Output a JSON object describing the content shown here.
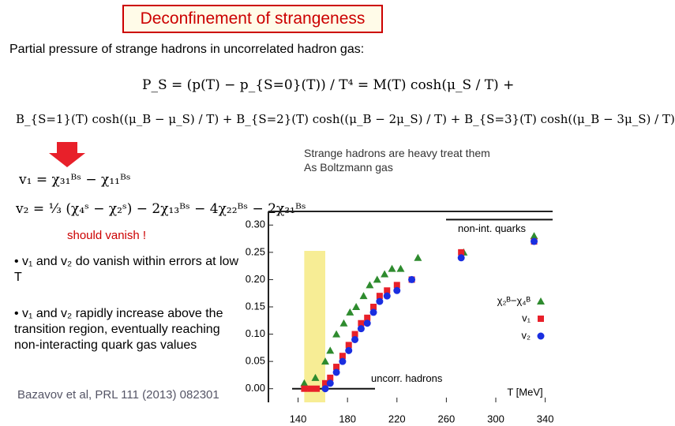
{
  "header": {
    "title": "Deconfinement of strangeness",
    "subtitle": "Partial pressure of strange hadrons in uncorrelated hadron gas:"
  },
  "equations": [
    "P_S = (p(T) − p_{S=0}(T)) / T⁴ = M(T) cosh(μ_S / T) +",
    "B_{S=1}(T) cosh((μ_B − μ_S) / T) + B_{S=2}(T) cosh((μ_B − 2μ_S) / T) + B_{S=3}(T) cosh((μ_B − 3μ_S) / T)",
    "v₁ = χ₃₁ᴮˢ − χ₁₁ᴮˢ",
    "v₂ = ⅓ (χ₄ˢ − χ₂ˢ) − 2χ₁₃ᴮˢ − 4χ₂₂ᴮˢ − 2χ₃₁ᴮˢ"
  ],
  "note": [
    "Strange hadrons are heavy treat them",
    "As Boltzmann gas"
  ],
  "highlight": "should vanish !",
  "bullets": [
    "v₁ and v₂ do vanish within errors at low T",
    "v₁ and v₂ rapidly increase above the transition region, eventually reaching non-interacting quark gas values"
  ],
  "citation": "Bazavov et al, PRL 111 (2013) 082301",
  "chart_data": {
    "type": "scatter",
    "x_label": "T [MeV]",
    "xlim": [
      116,
      346
    ],
    "ylim": [
      -0.025,
      0.325
    ],
    "xticks": [
      140,
      180,
      220,
      260,
      300,
      340
    ],
    "yticks": [
      {
        "value": 0,
        "label": "0.00"
      },
      {
        "value": 0.05,
        "label": "0.05"
      },
      {
        "value": 0.1,
        "label": "0.10"
      },
      {
        "value": 0.15,
        "label": "0.15"
      },
      {
        "value": 0.2,
        "label": "0.20"
      },
      {
        "value": 0.25,
        "label": "0.25"
      },
      {
        "value": 0.3,
        "label": "0.30"
      }
    ],
    "shaded_region": [
      145,
      162
    ],
    "reference_lines": [
      {
        "label": "non-int. quarks",
        "value": 0.31
      },
      {
        "label": "uncorr. hadrons",
        "value": 0
      }
    ],
    "series": [
      {
        "name": "χ₂ᴮ−χ₄ᴮ",
        "color": "#2e8b2e",
        "marker": "triangle",
        "x": [
          145,
          154,
          162,
          166,
          171,
          177,
          182,
          187,
          193,
          198,
          204,
          210,
          216,
          223,
          237,
          274,
          331
        ],
        "values": [
          0.01,
          0.02,
          0.05,
          0.07,
          0.1,
          0.12,
          0.14,
          0.15,
          0.17,
          0.19,
          0.2,
          0.21,
          0.22,
          0.22,
          0.24,
          0.25,
          0.28
        ]
      },
      {
        "name": "v₁",
        "color": "#e8202a",
        "marker": "square",
        "x": [
          145,
          150,
          155,
          162,
          166,
          171,
          176,
          181,
          186,
          191,
          196,
          201,
          206,
          212,
          220,
          232,
          272,
          331
        ],
        "values": [
          0,
          0,
          0,
          0.01,
          0.02,
          0.04,
          0.06,
          0.08,
          0.1,
          0.12,
          0.13,
          0.15,
          0.17,
          0.18,
          0.19,
          0.2,
          0.25,
          0.27
        ]
      },
      {
        "name": "v₂",
        "color": "#1a2ee0",
        "marker": "circle",
        "x": [
          162,
          166,
          171,
          176,
          181,
          186,
          191,
          196,
          201,
          206,
          212,
          220,
          232,
          272,
          331
        ],
        "values": [
          0,
          0.01,
          0.03,
          0.05,
          0.07,
          0.09,
          0.11,
          0.12,
          0.14,
          0.16,
          0.17,
          0.18,
          0.2,
          0.24,
          0.27
        ]
      }
    ]
  }
}
